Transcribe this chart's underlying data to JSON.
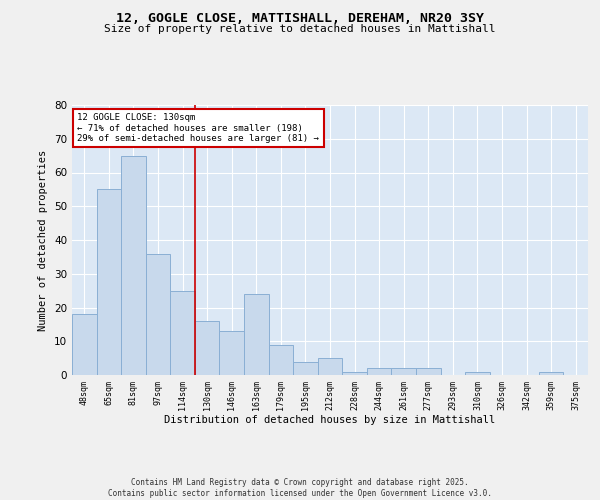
{
  "title_line1": "12, GOGLE CLOSE, MATTISHALL, DEREHAM, NR20 3SY",
  "title_line2": "Size of property relative to detached houses in Mattishall",
  "xlabel": "Distribution of detached houses by size in Mattishall",
  "ylabel": "Number of detached properties",
  "categories": [
    "48sqm",
    "65sqm",
    "81sqm",
    "97sqm",
    "114sqm",
    "130sqm",
    "146sqm",
    "163sqm",
    "179sqm",
    "195sqm",
    "212sqm",
    "228sqm",
    "244sqm",
    "261sqm",
    "277sqm",
    "293sqm",
    "310sqm",
    "326sqm",
    "342sqm",
    "359sqm",
    "375sqm"
  ],
  "values": [
    18,
    55,
    65,
    36,
    25,
    16,
    13,
    24,
    9,
    4,
    5,
    1,
    2,
    2,
    2,
    0,
    1,
    0,
    0,
    1,
    0
  ],
  "bar_color": "#c8d9ec",
  "bar_edge_color": "#8aafd4",
  "vline_color": "#cc0000",
  "annotation_title": "12 GOGLE CLOSE: 130sqm",
  "annotation_line2": "← 71% of detached houses are smaller (198)",
  "annotation_line3": "29% of semi-detached houses are larger (81) →",
  "annotation_box_color": "#cc0000",
  "annotation_fill": "#ffffff",
  "ylim": [
    0,
    80
  ],
  "yticks": [
    0,
    10,
    20,
    30,
    40,
    50,
    60,
    70,
    80
  ],
  "background_color": "#dce8f5",
  "fig_background": "#f0f0f0",
  "footer_line1": "Contains HM Land Registry data © Crown copyright and database right 2025.",
  "footer_line2": "Contains public sector information licensed under the Open Government Licence v3.0."
}
